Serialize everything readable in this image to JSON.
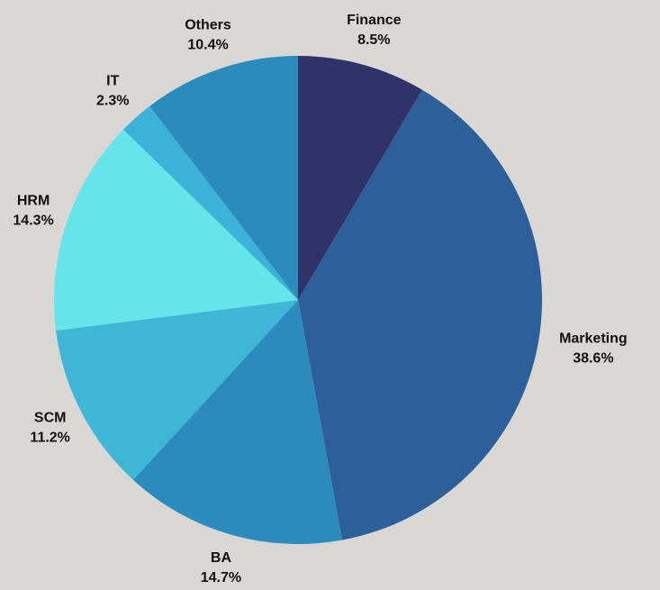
{
  "chart_data": {
    "type": "pie",
    "categories": [
      "Finance",
      "Marketing",
      "BA",
      "SCM",
      "HRM",
      "IT",
      "Others"
    ],
    "values": [
      8.5,
      38.6,
      14.7,
      11.2,
      14.3,
      2.3,
      10.4
    ],
    "value_labels": [
      "8.5%",
      "38.6%",
      "14.7%",
      "11.2%",
      "14.3%",
      "2.3%",
      "10.4%"
    ],
    "colors": [
      "#2f3369",
      "#2d5f9a",
      "#2b8bbd",
      "#3fb6d6",
      "#67e4e9",
      "#3cb2d8",
      "#2a8bbd"
    ]
  }
}
